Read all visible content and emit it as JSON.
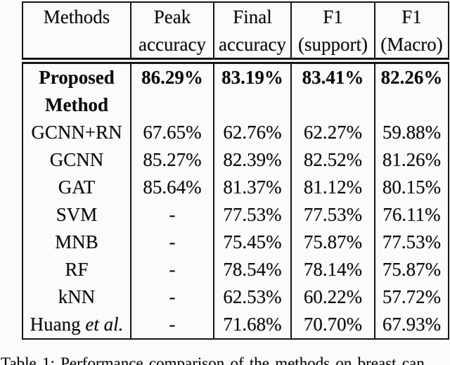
{
  "colors": {
    "background": "#fbfbfb",
    "text": "#0c0c0c",
    "border": "#161616"
  },
  "table": {
    "header": [
      {
        "id": "methods",
        "line1": "Methods",
        "line2": ""
      },
      {
        "id": "peak-accuracy",
        "line1": "Peak",
        "line2": "accuracy"
      },
      {
        "id": "final-accuracy",
        "line1": "Final",
        "line2": "accuracy"
      },
      {
        "id": "f1-support",
        "line1": "F1",
        "line2": "(support)"
      },
      {
        "id": "f1-macro",
        "line1": "F1",
        "line2": "(Macro)"
      }
    ],
    "rows": [
      {
        "method": "Proposed Method",
        "bold": true,
        "values": [
          "86.29%",
          "83.19%",
          "83.41%",
          "82.26%"
        ]
      },
      {
        "method": "GCNN+RN",
        "values": [
          "67.65%",
          "62.76%",
          "62.27%",
          "59.88%"
        ]
      },
      {
        "method": "GCNN",
        "values": [
          "85.27%",
          "82.39%",
          "82.52%",
          "81.26%"
        ]
      },
      {
        "method": "GAT",
        "values": [
          "85.64%",
          "81.37%",
          "81.12%",
          "80.15%"
        ]
      },
      {
        "method": "SVM",
        "values": [
          "-",
          "77.53%",
          "77.53%",
          "76.11%"
        ]
      },
      {
        "method": "MNB",
        "values": [
          "-",
          "75.45%",
          "75.87%",
          "77.53%"
        ]
      },
      {
        "method": "RF",
        "values": [
          "-",
          "78.54%",
          "78.14%",
          "75.87%"
        ]
      },
      {
        "method": "kNN",
        "values": [
          "-",
          "62.53%",
          "60.22%",
          "57.72%"
        ]
      },
      {
        "method": "Huang",
        "method_italic": "et al.",
        "values": [
          "-",
          "71.68%",
          "70.70%",
          "67.93%"
        ]
      }
    ]
  },
  "caption": "Table 1: Performance comparison of the methods on breast can"
}
